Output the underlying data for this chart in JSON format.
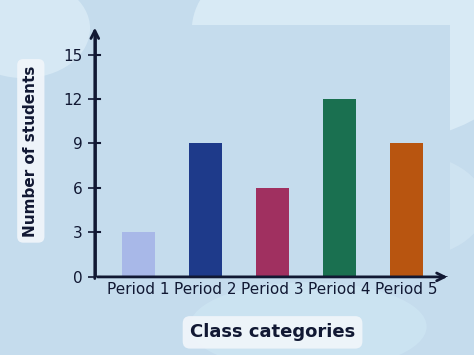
{
  "categories": [
    "Period 1",
    "Period 2",
    "Period 3",
    "Period 4",
    "Period 5"
  ],
  "values": [
    3,
    9,
    6,
    12,
    9
  ],
  "bar_colors": [
    "#a8b8e8",
    "#1e3a8a",
    "#a03060",
    "#1a7050",
    "#b85510"
  ],
  "xlabel": "Class categories",
  "ylabel": "Number of students",
  "yticks": [
    0,
    3,
    6,
    9,
    12,
    15
  ],
  "ylim": [
    0,
    17
  ],
  "background_color": "#c5dced",
  "bg_blob_color": "#d8eaf5",
  "xlabel_fontsize": 13,
  "ylabel_fontsize": 11,
  "tick_fontsize": 11,
  "xlabel_fontweight": "bold",
  "ylabel_fontweight": "bold",
  "axis_color": "#111833",
  "bar_width": 0.5,
  "white_box_color": "#f0f5fa"
}
